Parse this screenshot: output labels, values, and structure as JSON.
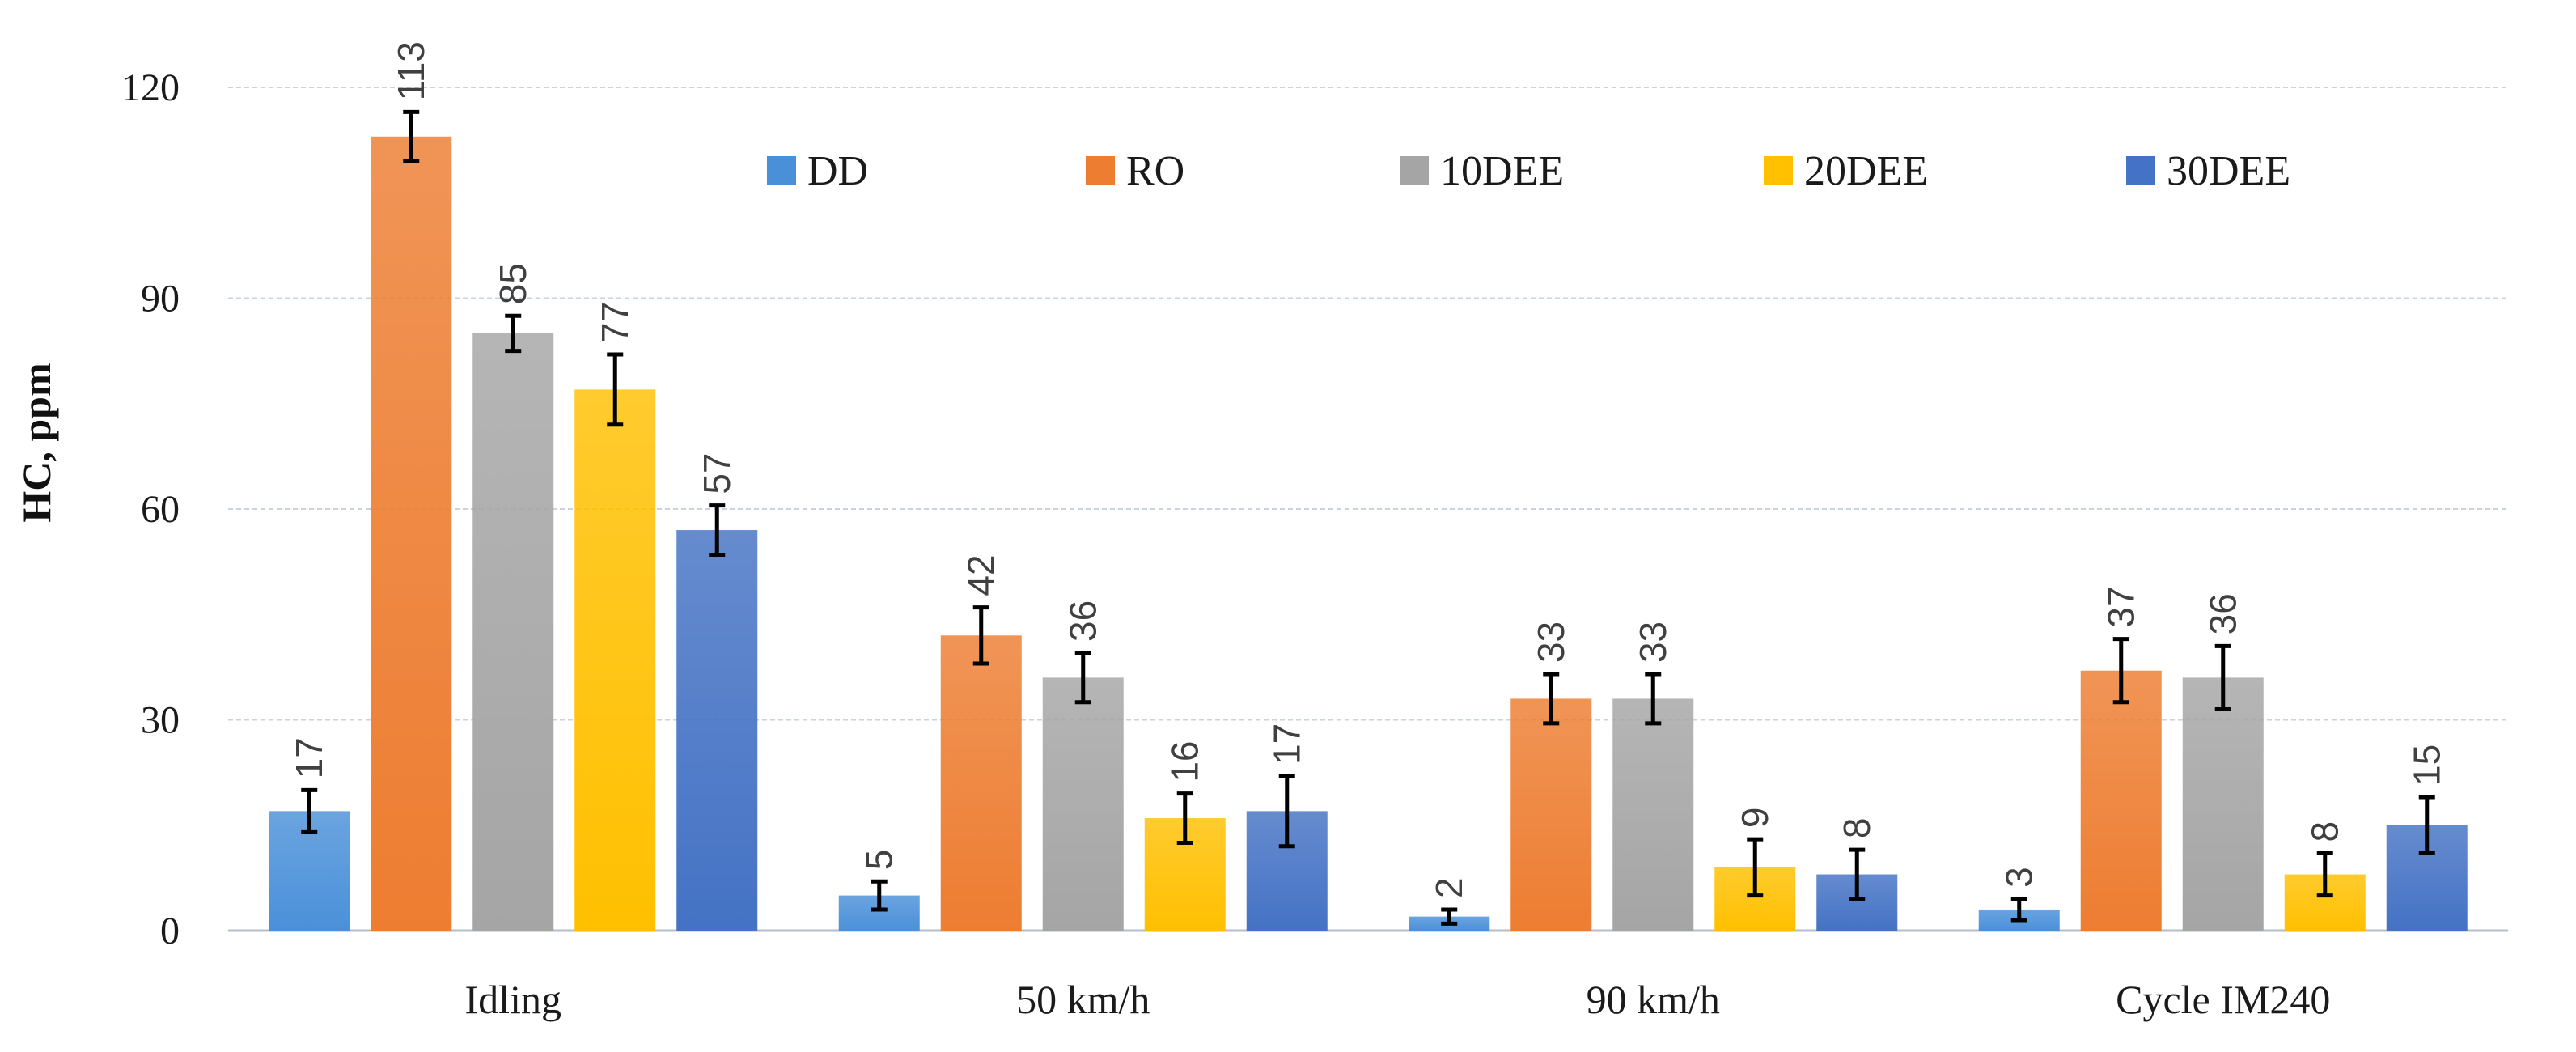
{
  "chart_data": {
    "type": "bar",
    "title": "",
    "xlabel": "",
    "ylabel": "HC, ppm",
    "ylim": [
      0,
      120
    ],
    "yticks": [
      "0",
      "30",
      "60",
      "90",
      "120"
    ],
    "grid": true,
    "legend_position": "top",
    "categories": [
      "Idling",
      "50 km/h",
      "90 km/h",
      "Cycle IM240"
    ],
    "series": [
      {
        "name": "DD",
        "color": "#4a90d9",
        "values": [
          17,
          5,
          2,
          3
        ],
        "labels": [
          "17",
          "5",
          "2",
          "3"
        ],
        "errors": [
          3,
          2,
          1,
          1.5
        ]
      },
      {
        "name": "RO",
        "color": "#ed7d31",
        "values": [
          113,
          42,
          33,
          37
        ],
        "labels": [
          "113",
          "42",
          "33",
          "37"
        ],
        "errors": [
          3.5,
          4,
          3.5,
          4.5
        ]
      },
      {
        "name": "10DEE",
        "color": "#a5a5a5",
        "values": [
          85,
          36,
          33,
          36
        ],
        "labels": [
          "85",
          "36",
          "33",
          "36"
        ],
        "errors": [
          2.5,
          3.5,
          3.5,
          4.5
        ]
      },
      {
        "name": "20DEE",
        "color": "#ffc000",
        "values": [
          77,
          16,
          9,
          8
        ],
        "labels": [
          "77",
          "16",
          "9",
          "8"
        ],
        "errors": [
          5,
          3.5,
          4,
          3
        ]
      },
      {
        "name": "30DEE",
        "color": "#4472c4",
        "values": [
          57,
          17,
          8,
          15
        ],
        "labels": [
          "57",
          "17",
          "8",
          "15"
        ],
        "errors": [
          3.5,
          5,
          3.5,
          4
        ]
      }
    ]
  }
}
